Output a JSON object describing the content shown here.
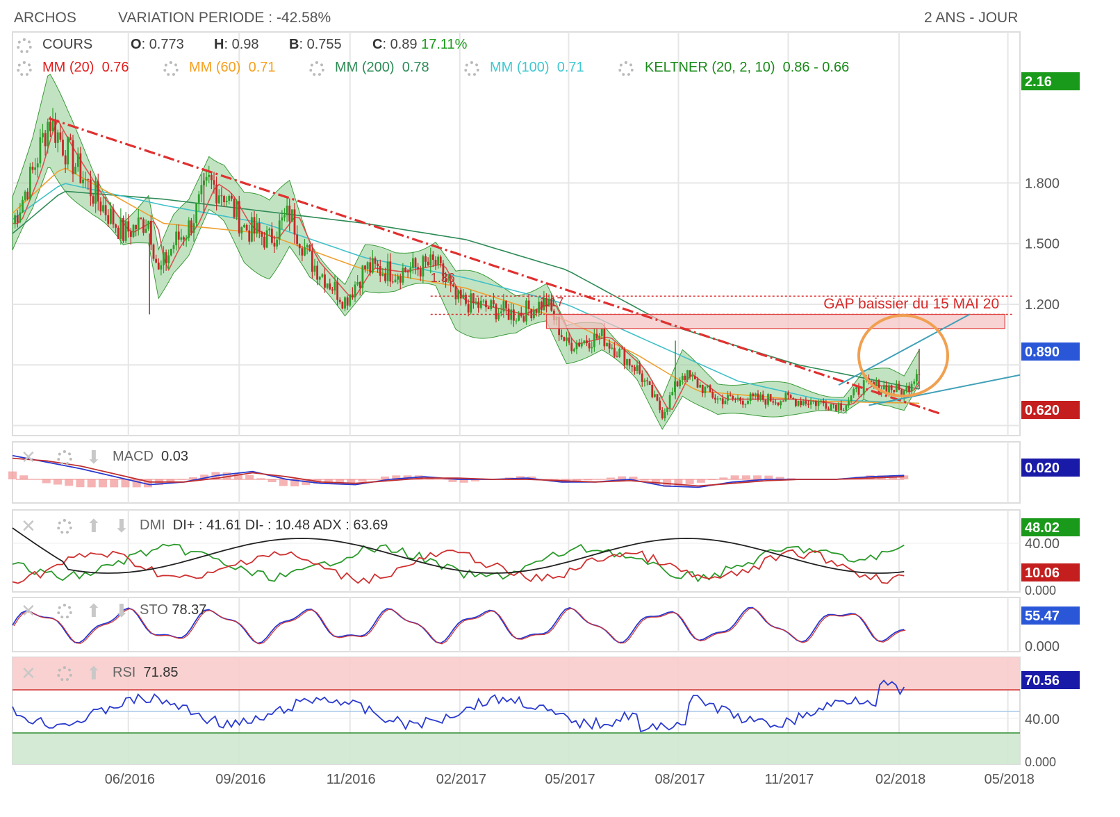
{
  "header": {
    "ticker": "ARCHOS",
    "variation": "VARIATION PERIODE : -42.58%",
    "range": "2 ANS - JOUR"
  },
  "legend": {
    "cours_label": "COURS",
    "o_label": "O",
    "o_value": "0.773",
    "h_label": "H",
    "h_value": "0.98",
    "b_label": "B",
    "b_value": "0.755",
    "c_label": "C",
    "c_value": "0.89",
    "c_change": "17.11%",
    "mm20": "MM (20)",
    "mm20_value": "0.76",
    "mm60": "MM (60)",
    "mm60_value": "0.71",
    "mm200": "MM (200)",
    "mm200_value": "0.78",
    "mm100": "MM (100)",
    "mm100_value": "0.71",
    "keltner": "KELTNER (20, 2, 10)",
    "keltner_value": "0.86 - 0.66"
  },
  "indicators": {
    "macd_label": "MACD",
    "macd_value": "0.03",
    "dmi_label": "DMI",
    "dmi_value": "DI+ : 41.61 DI- : 10.48 ADX : 63.69",
    "sto_label": "STO",
    "sto_value": "78.37",
    "rsi_label": "RSI",
    "rsi_value": "71.85"
  },
  "annotations": {
    "gap_text": "GAP baissier du 15 MAI 20",
    "label_136": "1.36",
    "label_117": "1.17"
  },
  "colors": {
    "up": "#2ca02c",
    "down": "#c62828",
    "mm20": "#d9534f",
    "mm60": "#f0a030",
    "mm200": "#2e8b57",
    "mm100": "#40c0c8",
    "keltner_fill": "#8fcc8f",
    "trend": "#e03030",
    "circle": "#f0a050",
    "badge_green": "#1a9a1a",
    "badge_red": "#c41e1e",
    "badge_blue": "#2a57d8",
    "badge_navy": "#1a1aa8"
  },
  "chart_data": [
    {
      "type": "candlestick",
      "name": "COURS",
      "x_tick_labels": [
        "06/2016",
        "09/2016",
        "11/2016",
        "02/2017",
        "05/2017",
        "08/2017",
        "11/2017",
        "02/2018",
        "05/2018"
      ],
      "y_tick_labels": [
        "1.800",
        "1.500",
        "1.200"
      ],
      "ylim": [
        0.55,
        2.3
      ],
      "badges": [
        "2.16",
        "0.890",
        "0.620"
      ],
      "price_path": [
        {
          "t": 0,
          "v": 1.6
        },
        {
          "t": 0.02,
          "v": 1.85
        },
        {
          "t": 0.036,
          "v": 2.12
        },
        {
          "t": 0.055,
          "v": 1.95
        },
        {
          "t": 0.08,
          "v": 1.75
        },
        {
          "t": 0.11,
          "v": 1.55
        },
        {
          "t": 0.135,
          "v": 1.62
        },
        {
          "t": 0.145,
          "v": 1.35
        },
        {
          "t": 0.16,
          "v": 1.5
        },
        {
          "t": 0.175,
          "v": 1.58
        },
        {
          "t": 0.195,
          "v": 1.8
        },
        {
          "t": 0.21,
          "v": 1.75
        },
        {
          "t": 0.23,
          "v": 1.58
        },
        {
          "t": 0.255,
          "v": 1.52
        },
        {
          "t": 0.275,
          "v": 1.65
        },
        {
          "t": 0.295,
          "v": 1.42
        },
        {
          "t": 0.33,
          "v": 1.22
        },
        {
          "t": 0.35,
          "v": 1.38
        },
        {
          "t": 0.38,
          "v": 1.36
        },
        {
          "t": 0.42,
          "v": 1.4
        },
        {
          "t": 0.44,
          "v": 1.22
        },
        {
          "t": 0.5,
          "v": 1.15
        },
        {
          "t": 0.53,
          "v": 1.21
        },
        {
          "t": 0.55,
          "v": 1.0
        },
        {
          "t": 0.585,
          "v": 1.04
        },
        {
          "t": 0.62,
          "v": 0.88
        },
        {
          "t": 0.645,
          "v": 0.66
        },
        {
          "t": 0.665,
          "v": 0.86
        },
        {
          "t": 0.7,
          "v": 0.73
        },
        {
          "t": 0.77,
          "v": 0.73
        },
        {
          "t": 0.825,
          "v": 0.7
        },
        {
          "t": 0.845,
          "v": 0.8
        },
        {
          "t": 0.87,
          "v": 0.79
        },
        {
          "t": 0.885,
          "v": 0.76
        },
        {
          "t": 0.9,
          "v": 0.89
        }
      ],
      "moving_averages": [
        {
          "name": "MM (200)",
          "value": 0.78,
          "path": [
            {
              "t": 0,
              "v": 1.55
            },
            {
              "t": 0.05,
              "v": 1.76
            },
            {
              "t": 0.15,
              "v": 1.72
            },
            {
              "t": 0.25,
              "v": 1.66
            },
            {
              "t": 0.35,
              "v": 1.6
            },
            {
              "t": 0.45,
              "v": 1.52
            },
            {
              "t": 0.55,
              "v": 1.37
            },
            {
              "t": 0.65,
              "v": 1.1
            },
            {
              "t": 0.78,
              "v": 0.9
            },
            {
              "t": 0.9,
              "v": 0.78
            }
          ]
        },
        {
          "name": "MM (100)",
          "value": 0.71,
          "path": [
            {
              "t": 0,
              "v": 1.62
            },
            {
              "t": 0.05,
              "v": 1.8
            },
            {
              "t": 0.15,
              "v": 1.69
            },
            {
              "t": 0.25,
              "v": 1.6
            },
            {
              "t": 0.35,
              "v": 1.43
            },
            {
              "t": 0.45,
              "v": 1.33
            },
            {
              "t": 0.55,
              "v": 1.2
            },
            {
              "t": 0.63,
              "v": 1.02
            },
            {
              "t": 0.72,
              "v": 0.82
            },
            {
              "t": 0.8,
              "v": 0.73
            },
            {
              "t": 0.9,
              "v": 0.71
            }
          ]
        },
        {
          "name": "MM (60)",
          "value": 0.71,
          "path": [
            {
              "t": 0,
              "v": 1.65
            },
            {
              "t": 0.05,
              "v": 1.88
            },
            {
              "t": 0.15,
              "v": 1.6
            },
            {
              "t": 0.25,
              "v": 1.55
            },
            {
              "t": 0.35,
              "v": 1.37
            },
            {
              "t": 0.45,
              "v": 1.28
            },
            {
              "t": 0.55,
              "v": 1.12
            },
            {
              "t": 0.62,
              "v": 0.95
            },
            {
              "t": 0.68,
              "v": 0.77
            },
            {
              "t": 0.8,
              "v": 0.72
            },
            {
              "t": 0.9,
              "v": 0.71
            }
          ]
        }
      ],
      "keltner": {
        "name": "KELTNER (20, 2, 10)",
        "upper": 0.86,
        "lower": 0.66
      },
      "trendlines": [
        {
          "style": "dash-dot",
          "from": {
            "t": 0.036,
            "v": 2.12
          },
          "to": {
            "t": 0.92,
            "v": 0.66
          }
        },
        {
          "style": "solid",
          "from": {
            "t": 0.82,
            "v": 0.8
          },
          "to": {
            "t": 0.95,
            "v": 1.15
          }
        },
        {
          "style": "solid",
          "from": {
            "t": 0.85,
            "v": 0.7
          },
          "to": {
            "t": 1.0,
            "v": 0.85
          }
        }
      ],
      "gap": {
        "label": "GAP baissier du 15 MAI 20",
        "levels": [
          1.17,
          1.24,
          1.15,
          1.08
        ]
      }
    },
    {
      "type": "line",
      "name": "MACD",
      "value": 0.03,
      "badges": [
        "0.020"
      ],
      "series": [
        {
          "name": "MACD",
          "values": [
            0.18,
            0.13,
            0.08,
            0.02,
            -0.04,
            -0.02,
            0.03,
            0.06,
            0.0,
            -0.03,
            -0.04,
            0.0,
            0.02,
            0.0,
            0.0,
            0.01,
            -0.02,
            -0.02,
            0.0,
            -0.05,
            -0.06,
            -0.02,
            0.0,
            0.0,
            0.0,
            0.02,
            0.03
          ]
        },
        {
          "name": "Signal",
          "values": [
            0.16,
            0.14,
            0.1,
            0.04,
            -0.02,
            -0.02,
            0.01,
            0.05,
            0.02,
            -0.02,
            -0.03,
            -0.01,
            0.01,
            0.01,
            0.0,
            0.0,
            -0.01,
            -0.02,
            -0.01,
            -0.03,
            -0.05,
            -0.03,
            -0.01,
            0.0,
            0.0,
            0.01,
            0.02
          ]
        }
      ]
    },
    {
      "type": "line",
      "name": "DMI",
      "y_tick_labels": [
        "40.00",
        "0.000"
      ],
      "badges": [
        "48.02",
        "10.06"
      ],
      "series": [
        {
          "name": "DI+",
          "last": 41.61
        },
        {
          "name": "DI-",
          "last": 10.48
        },
        {
          "name": "ADX",
          "last": 63.69
        }
      ]
    },
    {
      "type": "line",
      "name": "STO",
      "value": 78.37,
      "y_tick_labels": [
        "0.000"
      ],
      "badges": [
        "55.47"
      ]
    },
    {
      "type": "line",
      "name": "RSI",
      "value": 71.85,
      "y_tick_labels": [
        "40.00",
        "0.000"
      ],
      "badges": [
        "70.56"
      ]
    }
  ]
}
